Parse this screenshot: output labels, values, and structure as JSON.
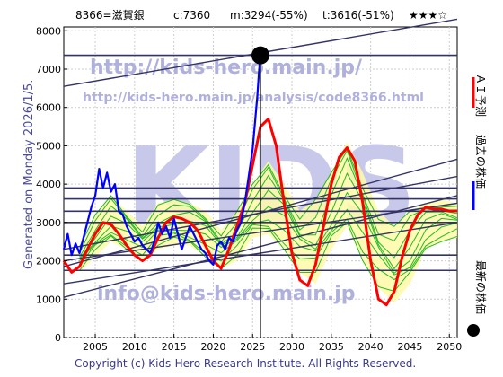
{
  "header": {
    "code_name": "8366=滋賀銀",
    "current": "c:7360",
    "m_value": "m:3294(-55%)",
    "t_value": "t:3616(-51%)",
    "stars": "★★★☆"
  },
  "watermarks": {
    "url_large": "http://kids-hero.main.jp/",
    "url_small": "http://kids-hero.main.jp/analysis/code8366.html",
    "logo": "KIDS",
    "email": "info@kids-hero.main.jp"
  },
  "generated_label": "Generated on Monday 2026/1/5.",
  "copyright": "Copyright (c) Kids-Hero Research Institute. All Rights Reserved.",
  "legend": [
    {
      "label": "ＡＩ予測",
      "color": "#ff0000",
      "marker": "line"
    },
    {
      "label": "過去の株価",
      "color": "#0000ff",
      "marker": "line"
    },
    {
      "label": "最新の株価",
      "color": "#000000",
      "marker": "dot"
    }
  ],
  "chart_data": {
    "type": "line",
    "title": "8366=滋賀銀",
    "xlim": [
      2001,
      2051
    ],
    "ylim": [
      0,
      8100
    ],
    "x_ticks": [
      2005,
      2010,
      2015,
      2020,
      2025,
      2030,
      2035,
      2040,
      2045,
      2050
    ],
    "y_ticks": [
      0,
      1000,
      2000,
      3000,
      4000,
      5000,
      6000,
      7000,
      8000
    ],
    "grid": true,
    "legend_position": "right (vertical)",
    "latest_point": {
      "x": 2026.0,
      "y": 7360
    },
    "horizontal_levels": [
      7360,
      3900,
      3616,
      3294,
      3000,
      2150,
      1750
    ],
    "trend_lines": [
      {
        "x": [
          2001,
          2051
        ],
        "y": [
          6550,
          8300
        ]
      },
      {
        "x": [
          2001,
          2051
        ],
        "y": [
          1850,
          4650
        ]
      },
      {
        "x": [
          2001,
          2051
        ],
        "y": [
          1050,
          3700
        ]
      },
      {
        "x": [
          2001,
          2051
        ],
        "y": [
          2300,
          4200
        ]
      },
      {
        "x": [
          2001,
          2051
        ],
        "y": [
          2000,
          3500
        ]
      },
      {
        "x": [
          2001,
          2051
        ],
        "y": [
          1400,
          3000
        ]
      }
    ],
    "series": [
      {
        "name": "過去の株価",
        "color": "#0000ff",
        "x": [
          2001.0,
          2001.5,
          2002.0,
          2002.5,
          2003.0,
          2003.5,
          2004.0,
          2004.5,
          2005.0,
          2005.5,
          2006.0,
          2006.5,
          2007.0,
          2007.5,
          2008.0,
          2008.5,
          2009.0,
          2009.5,
          2010.0,
          2010.5,
          2011.0,
          2011.5,
          2012.0,
          2012.5,
          2013.0,
          2013.5,
          2014.0,
          2014.5,
          2015.0,
          2015.5,
          2016.0,
          2016.5,
          2017.0,
          2017.5,
          2018.0,
          2018.5,
          2019.0,
          2019.5,
          2020.0,
          2020.5,
          2021.0,
          2021.5,
          2022.0,
          2022.5,
          2023.0,
          2023.5,
          2024.0,
          2024.5,
          2025.0,
          2025.3,
          2025.6,
          2025.8,
          2026.0
        ],
        "y": [
          2300,
          2700,
          2150,
          2450,
          2200,
          2600,
          3000,
          3400,
          3700,
          4400,
          3900,
          4300,
          3800,
          4000,
          3300,
          3200,
          2900,
          2700,
          2500,
          2600,
          2400,
          2300,
          2200,
          2500,
          3000,
          2700,
          2900,
          2600,
          3100,
          2700,
          2300,
          2600,
          2900,
          2700,
          2500,
          2300,
          2200,
          2000,
          1900,
          2400,
          2500,
          2300,
          2600,
          2500,
          2800,
          3000,
          3500,
          4200,
          4900,
          5600,
          6300,
          6900,
          7360
        ]
      },
      {
        "name": "ＡＩ予測",
        "color": "#ff0000",
        "x": [
          2001,
          2002,
          2003,
          2004,
          2005,
          2006,
          2007,
          2008,
          2009,
          2010,
          2011,
          2012,
          2013,
          2014,
          2015,
          2016,
          2017,
          2018,
          2019,
          2020,
          2021,
          2022,
          2023,
          2024,
          2025,
          2026,
          2027,
          2028,
          2029,
          2030,
          2031,
          2032,
          2033,
          2034,
          2035,
          2036,
          2037,
          2038,
          2039,
          2040,
          2041,
          2042,
          2043,
          2044,
          2045,
          2046,
          2047,
          2048,
          2049,
          2050,
          2051
        ],
        "y": [
          2000,
          1700,
          1850,
          2300,
          2700,
          3000,
          2950,
          2700,
          2400,
          2150,
          2000,
          2150,
          2600,
          3000,
          3150,
          3100,
          3000,
          2800,
          2400,
          2000,
          1800,
          2300,
          2900,
          3500,
          4500,
          5500,
          5700,
          5000,
          3500,
          2200,
          1500,
          1350,
          1900,
          2900,
          4000,
          4700,
          4950,
          4600,
          3500,
          2000,
          1000,
          850,
          1200,
          2100,
          2800,
          3200,
          3400,
          3350,
          3350,
          3300,
          3300
        ]
      }
    ],
    "band": {
      "name": "予測帯",
      "x": [
        2003,
        2005,
        2007,
        2009,
        2011,
        2013,
        2015,
        2017,
        2019,
        2021,
        2023,
        2025,
        2027,
        2029,
        2031,
        2033,
        2035,
        2037,
        2039,
        2041,
        2043,
        2045,
        2047,
        2049,
        2051
      ],
      "upper": [
        2400,
        3200,
        3700,
        3300,
        2900,
        3500,
        3600,
        3500,
        3300,
        2800,
        3300,
        4000,
        4600,
        4000,
        3300,
        3600,
        4300,
        5100,
        4300,
        3300,
        2900,
        3300,
        3500,
        3600,
        3500
      ],
      "lower": [
        1700,
        2100,
        2500,
        2300,
        2000,
        2300,
        2400,
        2400,
        2100,
        1800,
        2000,
        2600,
        2700,
        2300,
        1700,
        1400,
        2300,
        2900,
        2000,
        1300,
        900,
        1400,
        2300,
        2500,
        2600
      ]
    },
    "green_lines_count": 8
  }
}
